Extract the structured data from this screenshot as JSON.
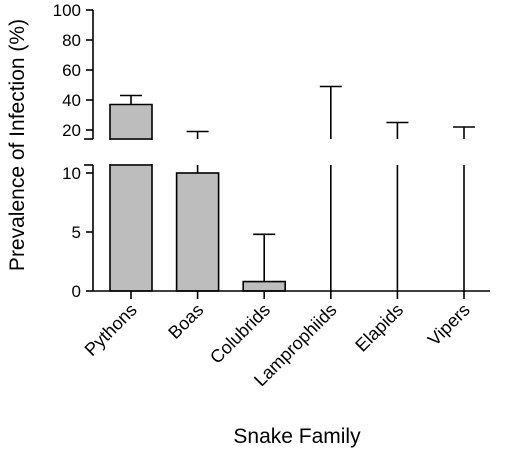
{
  "chart_data": {
    "type": "bar",
    "title": "",
    "xlabel": "Snake Family",
    "ylabel": "Prevalence of Infection (%)",
    "axis_break": true,
    "ylim_lower": [
      0,
      12
    ],
    "ylim_upper": [
      20,
      100
    ],
    "yticks_lower": [
      0,
      5,
      10
    ],
    "yticks_upper": [
      20,
      40,
      60,
      80,
      100
    ],
    "grid": false,
    "categories": [
      "Pythons",
      "Boas",
      "Colubrids",
      "Lamprophiids",
      "Elapids",
      "Vipers"
    ],
    "values": [
      37,
      10,
      0.8,
      0,
      0,
      0
    ],
    "error_upper": [
      43,
      19,
      4.8,
      49,
      25,
      22
    ],
    "bar_color": "#bdbdbd"
  },
  "labels": {
    "ylabel": "Prevalence of Infection (%)",
    "xlabel": "Snake Family"
  }
}
